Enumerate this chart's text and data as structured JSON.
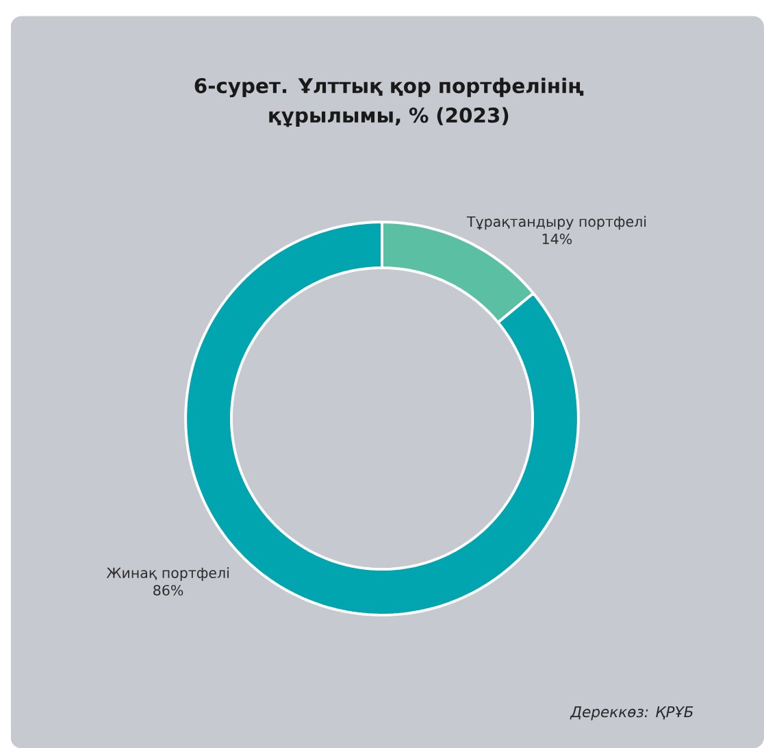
{
  "chart_data": {
    "type": "donut",
    "title": "6-сурет. Ұлттық қор портфелінің құрылымы, % (2023)",
    "categories": [
      "Тұрақтандыру портфелі",
      "Жинақ портфелі"
    ],
    "values": [
      14,
      86
    ],
    "value_labels": [
      "14%",
      "86%"
    ],
    "colors": [
      "#5bbfa3",
      "#00a5b0"
    ],
    "annotations": [
      "Дереккөз: ҚРҰБ"
    ]
  }
}
